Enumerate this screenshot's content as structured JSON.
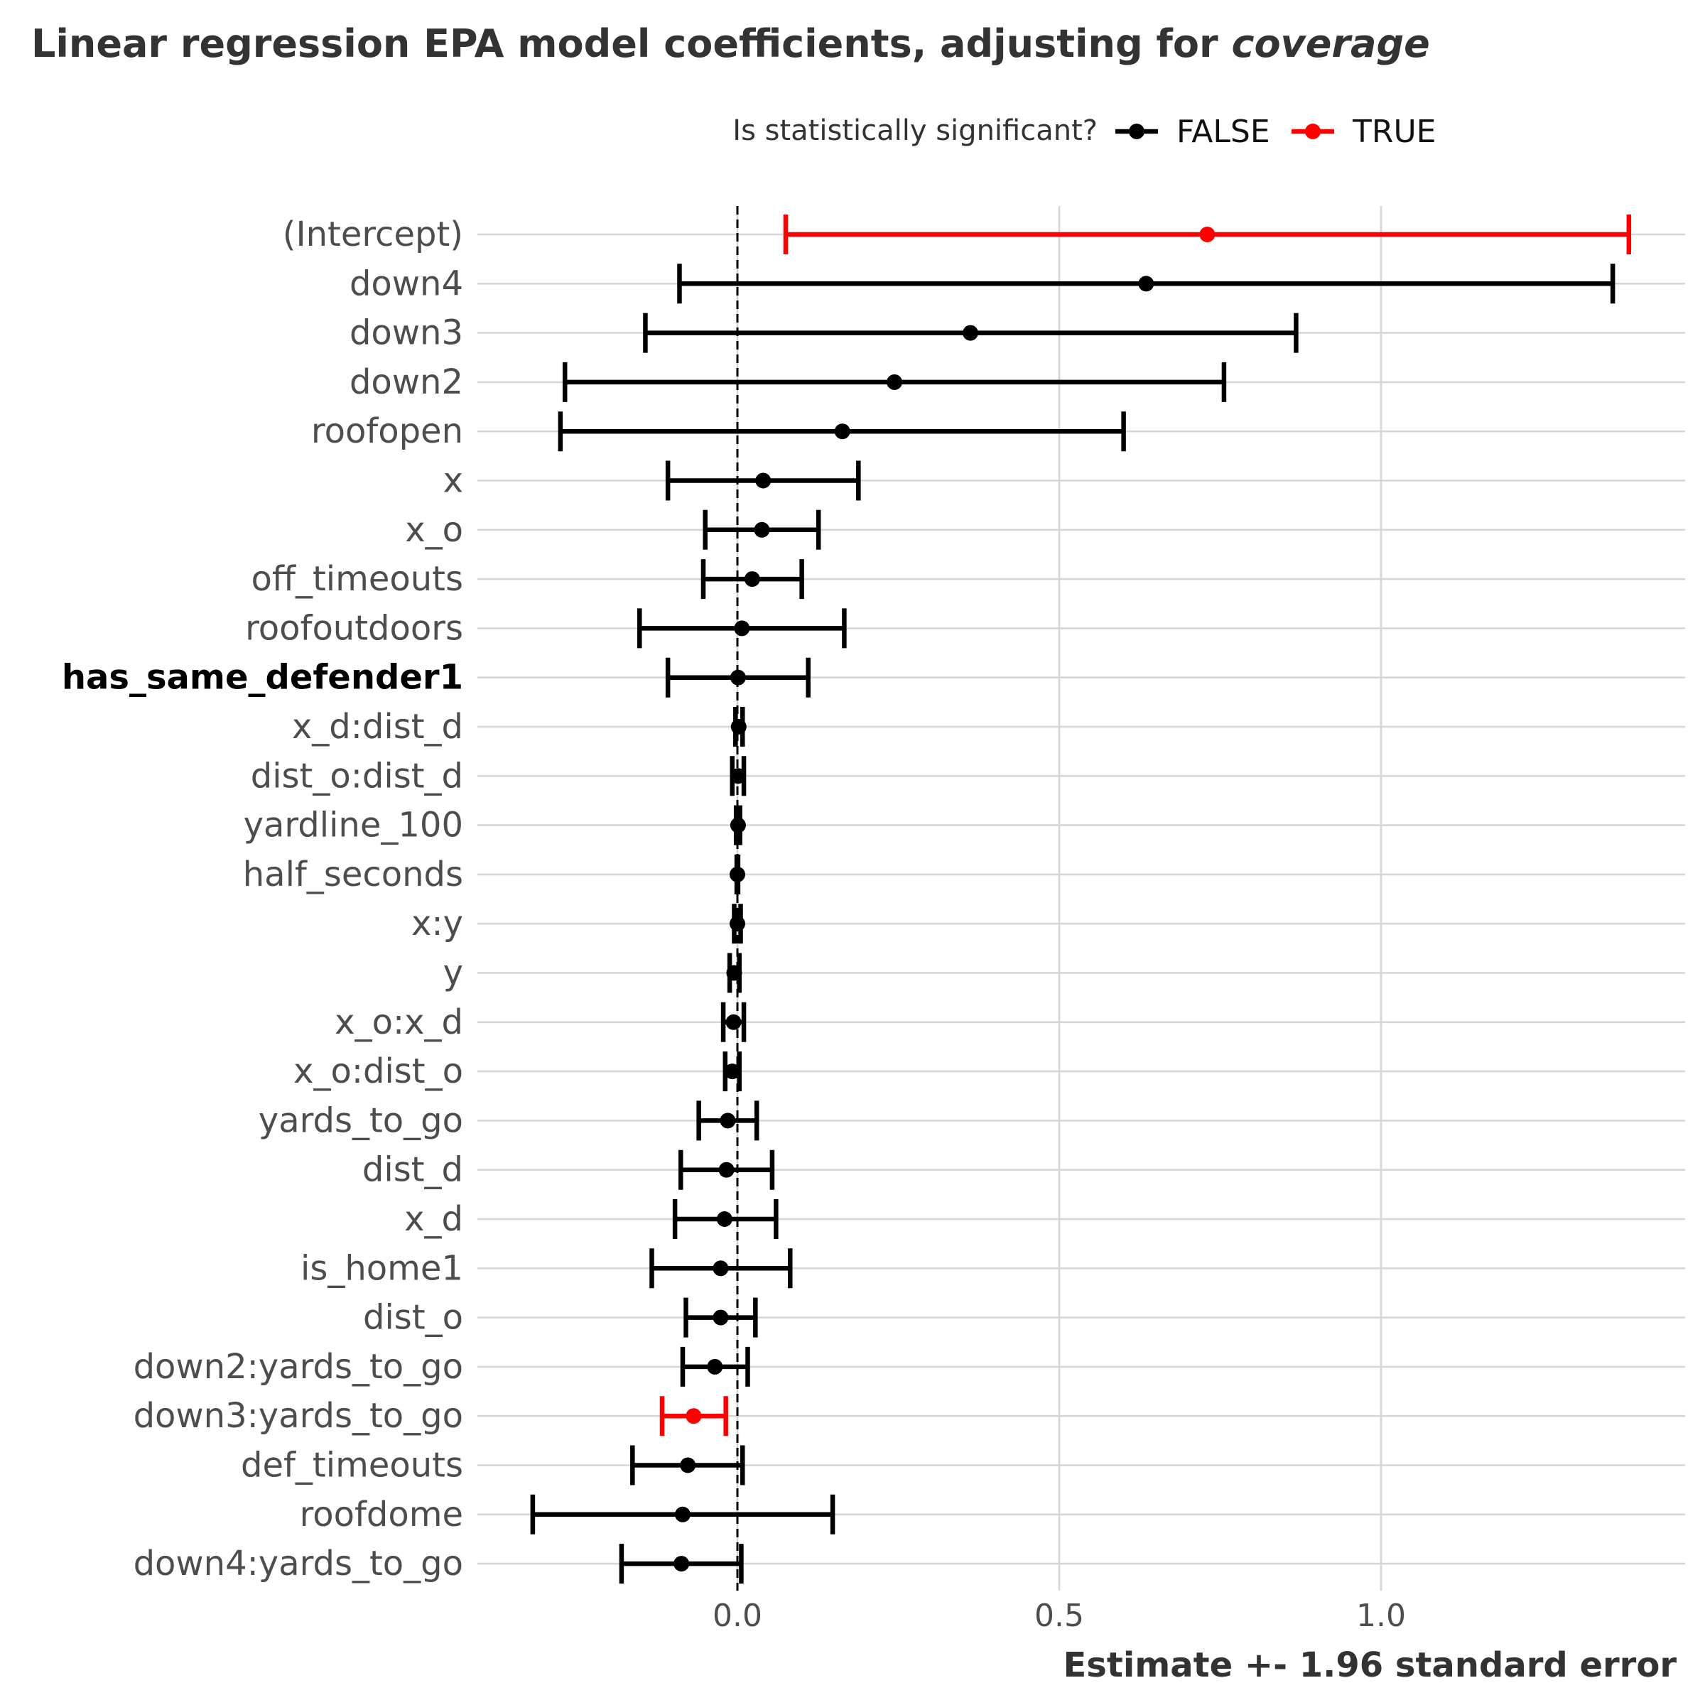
{
  "chart_data": {
    "type": "dot-errorbar",
    "title": "Linear regression EPA model coefficients, adjusting for ",
    "title_emphasis": "coverage",
    "xlabel": "Estimate +- 1.96 standard error",
    "ylabel": "",
    "xlim": [
      -0.4,
      1.47
    ],
    "xticks": [
      0.0,
      0.5,
      1.0
    ],
    "xtick_labels": [
      "0.0",
      "0.5",
      "1.0"
    ],
    "reference_line": 0,
    "highlight_term": "has_same_defender1",
    "legend": {
      "title": "Is statistically significant?",
      "entries": [
        {
          "label": "FALSE",
          "color": "#000000"
        },
        {
          "label": "TRUE",
          "color": "#ff0000"
        }
      ]
    },
    "terms": [
      {
        "term": "(Intercept)",
        "estimate": 0.73,
        "low": 0.075,
        "high": 1.385,
        "significant": true
      },
      {
        "term": "down4",
        "estimate": 0.635,
        "low": -0.09,
        "high": 1.36,
        "significant": false
      },
      {
        "term": "down3",
        "estimate": 0.362,
        "low": -0.143,
        "high": 0.868,
        "significant": false
      },
      {
        "term": "down2",
        "estimate": 0.244,
        "low": -0.268,
        "high": 0.756,
        "significant": false
      },
      {
        "term": "roofopen",
        "estimate": 0.163,
        "low": -0.275,
        "high": 0.6,
        "significant": false
      },
      {
        "term": "x",
        "estimate": 0.04,
        "low": -0.108,
        "high": 0.188,
        "significant": false
      },
      {
        "term": "x_o",
        "estimate": 0.038,
        "low": -0.05,
        "high": 0.126,
        "significant": false
      },
      {
        "term": "off_timeouts",
        "estimate": 0.023,
        "low": -0.053,
        "high": 0.1,
        "significant": false
      },
      {
        "term": "roofoutdoors",
        "estimate": 0.007,
        "low": -0.152,
        "high": 0.166,
        "significant": false
      },
      {
        "term": "has_same_defender1",
        "estimate": 0.001,
        "low": -0.108,
        "high": 0.11,
        "significant": false
      },
      {
        "term": "x_d:dist_d",
        "estimate": 0.002,
        "low": -0.003,
        "high": 0.008,
        "significant": false
      },
      {
        "term": "dist_o:dist_d",
        "estimate": 0.001,
        "low": -0.008,
        "high": 0.01,
        "significant": false
      },
      {
        "term": "yardline_100",
        "estimate": 0.001,
        "low": -0.002,
        "high": 0.004,
        "significant": false
      },
      {
        "term": "half_seconds",
        "estimate": 0.0,
        "low": -0.001,
        "high": 0.001,
        "significant": false
      },
      {
        "term": "x:y",
        "estimate": 0.0,
        "low": -0.005,
        "high": 0.005,
        "significant": false
      },
      {
        "term": "y",
        "estimate": -0.005,
        "low": -0.012,
        "high": 0.003,
        "significant": false
      },
      {
        "term": "x_o:x_d",
        "estimate": -0.006,
        "low": -0.022,
        "high": 0.01,
        "significant": false
      },
      {
        "term": "x_o:dist_o",
        "estimate": -0.008,
        "low": -0.019,
        "high": 0.003,
        "significant": false
      },
      {
        "term": "yards_to_go",
        "estimate": -0.015,
        "low": -0.06,
        "high": 0.03,
        "significant": false
      },
      {
        "term": "dist_d",
        "estimate": -0.017,
        "low": -0.088,
        "high": 0.054,
        "significant": false
      },
      {
        "term": "x_d",
        "estimate": -0.02,
        "low": -0.097,
        "high": 0.06,
        "significant": false
      },
      {
        "term": "is_home1",
        "estimate": -0.026,
        "low": -0.133,
        "high": 0.082,
        "significant": false
      },
      {
        "term": "dist_o",
        "estimate": -0.026,
        "low": -0.08,
        "high": 0.028,
        "significant": false
      },
      {
        "term": "down2:yards_to_go",
        "estimate": -0.035,
        "low": -0.085,
        "high": 0.016,
        "significant": false
      },
      {
        "term": "down3:yards_to_go",
        "estimate": -0.068,
        "low": -0.117,
        "high": -0.018,
        "significant": true
      },
      {
        "term": "def_timeouts",
        "estimate": -0.077,
        "low": -0.163,
        "high": 0.008,
        "significant": false
      },
      {
        "term": "roofdome",
        "estimate": -0.085,
        "low": -0.318,
        "high": 0.148,
        "significant": false
      },
      {
        "term": "down4:yards_to_go",
        "estimate": -0.087,
        "low": -0.18,
        "high": 0.006,
        "significant": false
      }
    ]
  }
}
